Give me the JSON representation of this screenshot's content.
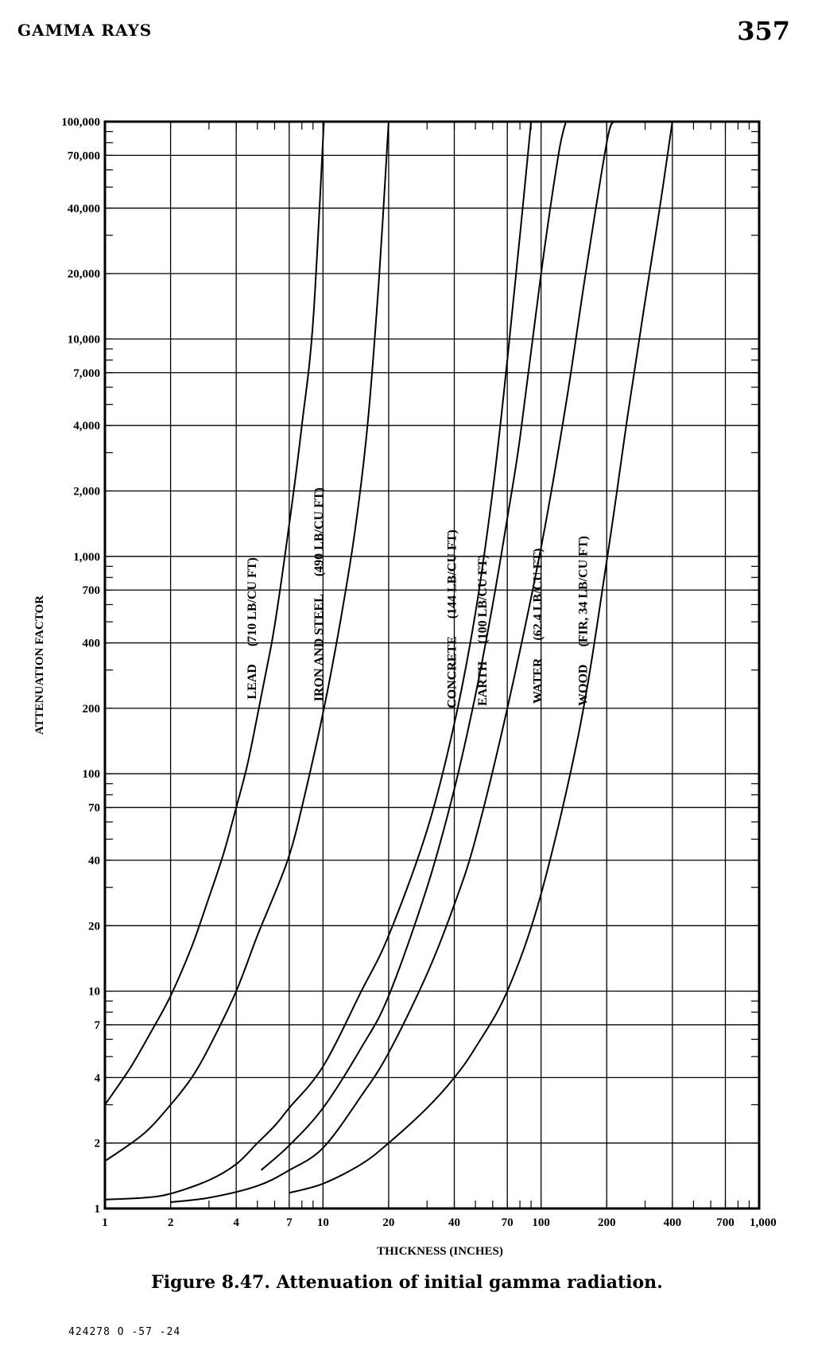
{
  "header": {
    "section": "GAMMA RAYS",
    "page_number": "357"
  },
  "caption": "Figure 8.47.   Attenuation of initial gamma radiation.",
  "footer_code": "424278 O -57 -24",
  "chart_data": {
    "type": "line",
    "xscale": "log",
    "yscale": "log",
    "xlim": [
      1,
      1000
    ],
    "ylim": [
      1,
      100000
    ],
    "grid": true,
    "xlabel": "THICKNESS (INCHES)",
    "ylabel": "ATTENUATION FACTOR",
    "x_tick_labels": [
      {
        "v": 1,
        "t": "1"
      },
      {
        "v": 2,
        "t": "2"
      },
      {
        "v": 4,
        "t": "4"
      },
      {
        "v": 7,
        "t": "7"
      },
      {
        "v": 10,
        "t": "10"
      },
      {
        "v": 20,
        "t": "20"
      },
      {
        "v": 40,
        "t": "40"
      },
      {
        "v": 70,
        "t": "70"
      },
      {
        "v": 100,
        "t": "100"
      },
      {
        "v": 200,
        "t": "200"
      },
      {
        "v": 400,
        "t": "400"
      },
      {
        "v": 700,
        "t": "700"
      },
      {
        "v": 1000,
        "t": "1,000"
      }
    ],
    "y_tick_labels": [
      {
        "v": 1,
        "t": "1"
      },
      {
        "v": 2,
        "t": "2"
      },
      {
        "v": 4,
        "t": "4"
      },
      {
        "v": 7,
        "t": "7"
      },
      {
        "v": 10,
        "t": "10"
      },
      {
        "v": 20,
        "t": "20"
      },
      {
        "v": 40,
        "t": "40"
      },
      {
        "v": 70,
        "t": "70"
      },
      {
        "v": 100,
        "t": "100"
      },
      {
        "v": 200,
        "t": "200"
      },
      {
        "v": 400,
        "t": "400"
      },
      {
        "v": 700,
        "t": "700"
      },
      {
        "v": 1000,
        "t": "1,000"
      },
      {
        "v": 2000,
        "t": "2,000"
      },
      {
        "v": 4000,
        "t": "4,000"
      },
      {
        "v": 7000,
        "t": "7,000"
      },
      {
        "v": 10000,
        "t": "10,000"
      },
      {
        "v": 20000,
        "t": "20,000"
      },
      {
        "v": 40000,
        "t": "40,000"
      },
      {
        "v": 70000,
        "t": "70,000"
      },
      {
        "v": 100000,
        "t": "100,000"
      }
    ],
    "series": [
      {
        "name": "LEAD   (710 LB/CU FT)",
        "label_parts": [
          "LEAD",
          "(710 LB/CU FT)"
        ],
        "x": [
          1,
          1.3,
          1.6,
          2,
          2.5,
          3,
          3.5,
          4,
          4.5,
          5,
          5.5,
          6,
          7,
          8,
          9,
          10.1
        ],
        "y": [
          3,
          4.4,
          6.3,
          9.5,
          16,
          27,
          43,
          70,
          110,
          185,
          300,
          480,
          1400,
          4000,
          12000,
          100000
        ]
      },
      {
        "name": "IRON AND STEEL   (490 LB/CU FT)",
        "label_parts": [
          "IRON AND STEEL",
          "(490 LB/CU FT)"
        ],
        "x": [
          1,
          1.5,
          2,
          2.5,
          3,
          4,
          5,
          6,
          7,
          8,
          10,
          12,
          14,
          16,
          18,
          20
        ],
        "y": [
          1.65,
          2.2,
          3,
          4,
          5.5,
          10,
          18,
          28,
          42,
          70,
          190,
          500,
          1300,
          4000,
          18000,
          100000
        ]
      },
      {
        "name": "CONCRETE   (144 LB/CU FT)",
        "label_parts": [
          "CONCRETE",
          "(144 LB/CU FT)"
        ],
        "x": [
          1,
          1.5,
          2,
          3,
          4,
          5,
          6,
          7,
          10,
          15,
          20,
          30,
          40,
          50,
          60,
          70,
          80,
          90
        ],
        "y": [
          1.1,
          1.12,
          1.17,
          1.35,
          1.6,
          2,
          2.4,
          2.9,
          4.5,
          10,
          18,
          55,
          170,
          550,
          2000,
          8000,
          30000,
          100000
        ]
      },
      {
        "name": "EARTH   (100 LB/CU FT)",
        "label_parts": [
          "EARTH",
          "(100 LB/CU FT)"
        ],
        "x": [
          5.2,
          7,
          10,
          15,
          20,
          30,
          40,
          50,
          60,
          70,
          80,
          100,
          120,
          130
        ],
        "y": [
          1.5,
          1.95,
          2.9,
          5.5,
          9.5,
          30,
          85,
          230,
          600,
          1500,
          3500,
          20000,
          70000,
          100000
        ]
      },
      {
        "name": "WATER   (62.4 LB/CU FT)",
        "label_parts": [
          "WATER",
          "(62.4 LB/CU FT)"
        ],
        "x": [
          2,
          3,
          5,
          7,
          10,
          15,
          20,
          30,
          40,
          50,
          70,
          100,
          130,
          160,
          200,
          215
        ],
        "y": [
          1.07,
          1.12,
          1.27,
          1.5,
          1.9,
          3.3,
          5.2,
          12,
          25,
          50,
          200,
          1100,
          5000,
          20000,
          80000,
          100000
        ]
      },
      {
        "name": "WOOD   (FIR, 34 LB/CU FT)",
        "label_parts": [
          "WOOD",
          "(FIR, 34 LB/CU FT)"
        ],
        "x": [
          7,
          10,
          15,
          20,
          30,
          40,
          50,
          70,
          100,
          150,
          200,
          250,
          300,
          350,
          400
        ],
        "y": [
          1.18,
          1.3,
          1.6,
          2,
          2.9,
          4,
          5.5,
          10,
          28,
          160,
          950,
          4500,
          15000,
          40000,
          100000
        ]
      }
    ]
  }
}
